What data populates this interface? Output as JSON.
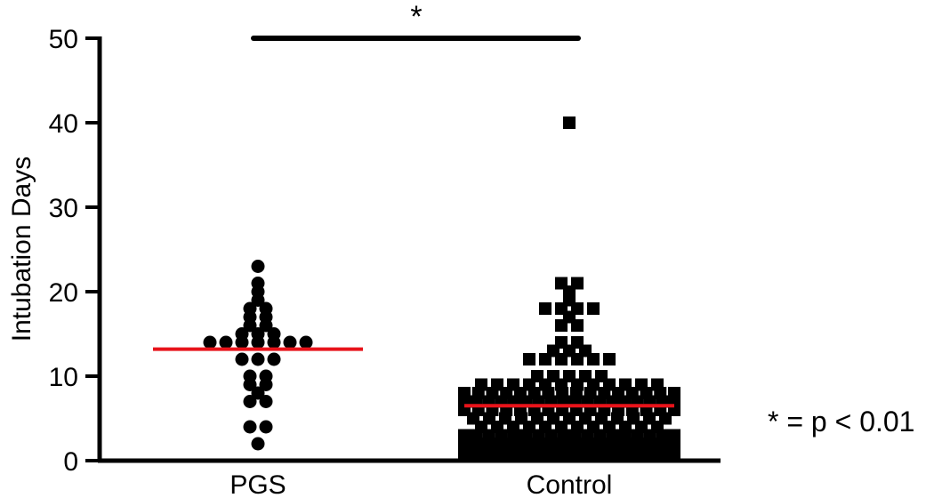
{
  "chart_data": {
    "type": "scatter",
    "ylabel": "Intubation Days",
    "xlabel": "",
    "ylim": [
      0,
      50
    ],
    "yticks": [
      0,
      10,
      20,
      30,
      40,
      50
    ],
    "categories": [
      "PGS",
      "Control"
    ],
    "colors": {
      "points": "#000000",
      "mean_line": "#e8131a",
      "axis": "#000000"
    },
    "series": [
      {
        "category": "PGS",
        "marker": "circle",
        "mean": 13.2,
        "values": [
          23,
          21,
          20,
          19,
          18,
          18,
          17,
          17,
          16,
          16,
          15,
          15,
          15,
          14,
          14,
          14,
          14,
          14,
          14,
          14,
          12,
          12,
          12,
          10,
          10,
          9,
          9,
          8,
          7,
          7,
          4,
          4,
          2
        ]
      },
      {
        "category": "Control",
        "marker": "square",
        "mean": 6.5,
        "values": [
          40,
          21,
          21,
          20,
          19,
          18,
          18,
          18,
          18,
          17,
          16,
          16,
          14,
          14,
          13,
          13,
          13,
          12,
          12,
          12,
          12,
          12,
          12,
          10,
          10,
          10,
          10,
          10,
          9,
          9,
          9,
          9,
          9,
          9,
          9,
          9,
          9,
          9,
          9,
          9,
          8,
          8,
          8,
          8,
          8,
          8,
          8,
          8,
          8,
          8,
          8,
          8,
          8,
          8,
          8,
          8,
          7,
          7,
          7,
          7,
          7,
          7,
          7,
          7,
          7,
          7,
          7,
          7,
          7,
          7,
          7,
          7,
          7,
          7,
          6,
          6,
          6,
          6,
          6,
          6,
          6,
          6,
          6,
          6,
          6,
          6,
          6,
          6,
          6,
          6,
          5,
          5,
          5,
          5,
          5,
          5,
          5,
          5,
          5,
          5,
          5,
          5,
          5,
          4,
          4,
          4,
          4,
          4,
          4,
          4,
          4,
          4,
          4,
          4,
          4,
          3,
          3,
          3,
          3,
          3,
          3,
          3,
          3,
          3,
          3,
          3,
          3,
          3,
          3,
          3,
          3,
          3,
          3,
          2,
          2,
          2,
          2,
          2,
          2,
          2,
          2,
          2,
          2,
          2,
          2,
          2,
          2,
          2,
          2,
          2,
          2,
          2,
          2,
          1,
          1,
          1,
          1,
          1,
          1,
          1,
          1,
          1,
          1,
          1,
          1,
          1,
          1,
          1,
          1,
          1,
          1,
          1,
          1,
          1,
          1,
          1,
          1,
          1,
          1,
          1,
          1
        ]
      }
    ],
    "significance": {
      "between": [
        "PGS",
        "Control"
      ],
      "label": "*"
    },
    "annotation": "* = p < 0.01"
  }
}
